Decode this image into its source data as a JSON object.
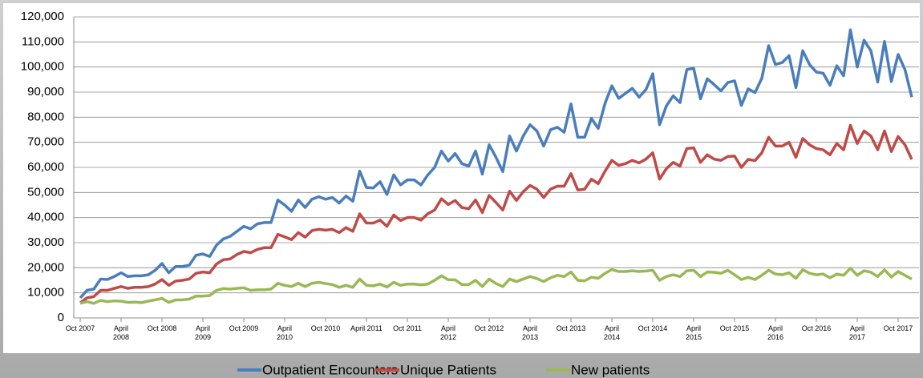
{
  "chart_data": {
    "type": "line",
    "categories": [
      "Oct 2007",
      null,
      null,
      null,
      null,
      null,
      "April 2008",
      null,
      null,
      null,
      null,
      null,
      "Oct 2008",
      null,
      null,
      null,
      null,
      null,
      "April 2009",
      null,
      null,
      null,
      null,
      null,
      "Oct 2009",
      null,
      null,
      null,
      null,
      null,
      "April 2010",
      null,
      null,
      null,
      null,
      null,
      "Oct 2010",
      null,
      null,
      null,
      null,
      null,
      "April 2011",
      null,
      null,
      null,
      null,
      null,
      "Oct 2011",
      null,
      null,
      null,
      null,
      null,
      "April 2012",
      null,
      null,
      null,
      null,
      null,
      "Oct 2012",
      null,
      null,
      null,
      null,
      null,
      "April 2013",
      null,
      null,
      null,
      null,
      null,
      "Oct 2013",
      null,
      null,
      null,
      null,
      null,
      "April 2014",
      null,
      null,
      null,
      null,
      null,
      "Oct 2014",
      null,
      null,
      null,
      null,
      null,
      "April 2015",
      null,
      null,
      null,
      null,
      null,
      "Oct 2015",
      null,
      null,
      null,
      null,
      null,
      "April 2016",
      null,
      null,
      null,
      null,
      null,
      "Oct 2016",
      null,
      null,
      null,
      null,
      null,
      "April 2017",
      null,
      null,
      null,
      null,
      null,
      "Oct 2017",
      null,
      null
    ],
    "series": [
      {
        "name": "Outpatient Encounters",
        "color": "#4a7ebb",
        "values": [
          8000,
          11000,
          11500,
          15500,
          15300,
          16500,
          18000,
          16500,
          16800,
          16800,
          17200,
          19000,
          21700,
          18000,
          20500,
          20500,
          21000,
          25000,
          25500,
          24500,
          29000,
          31500,
          32500,
          34500,
          36500,
          35500,
          37500,
          38000,
          38000,
          47000,
          45000,
          42500,
          47000,
          44000,
          47300,
          48300,
          47300,
          48000,
          45800,
          48600,
          46500,
          58500,
          52000,
          51800,
          54300,
          49200,
          57000,
          53000,
          55000,
          55000,
          53000,
          57000,
          60000,
          66500,
          62500,
          65500,
          61500,
          60500,
          66500,
          57300,
          69000,
          64000,
          58300,
          72500,
          66500,
          72500,
          77000,
          74500,
          68500,
          75000,
          76000,
          74000,
          85300,
          72000,
          72000,
          79500,
          75500,
          85500,
          92500,
          87500,
          89500,
          91500,
          88000,
          91000,
          97300,
          77000,
          84500,
          88500,
          85800,
          99000,
          99500,
          87300,
          95300,
          93000,
          90500,
          93800,
          94500,
          84700,
          91300,
          89800,
          95500,
          108500,
          101000,
          101800,
          104500,
          91800,
          106500,
          101000,
          98000,
          97500,
          92700,
          100500,
          96500,
          114800,
          100000,
          110700,
          106500,
          94000,
          110200,
          94200,
          105000,
          99000,
          88000
        ]
      },
      {
        "name": "Unique Patients",
        "color": "#be4b48",
        "values": [
          6000,
          8000,
          8500,
          11000,
          11000,
          11800,
          12500,
          11800,
          12200,
          12200,
          12500,
          13500,
          15300,
          13000,
          14700,
          15000,
          15500,
          17800,
          18300,
          18000,
          21500,
          23200,
          23500,
          25300,
          26500,
          26000,
          27300,
          28000,
          28000,
          33300,
          32300,
          31200,
          34000,
          32200,
          34800,
          35300,
          35000,
          35300,
          34000,
          36000,
          34500,
          41500,
          37800,
          37800,
          39000,
          36500,
          41000,
          38800,
          40000,
          40000,
          39000,
          41500,
          43000,
          47500,
          45200,
          46800,
          44000,
          43500,
          47000,
          42000,
          48800,
          46000,
          43000,
          50500,
          46800,
          50300,
          52800,
          51300,
          48000,
          51300,
          52500,
          52500,
          57500,
          51000,
          51300,
          55300,
          53500,
          58500,
          62800,
          60800,
          61500,
          62800,
          61800,
          63300,
          65800,
          55300,
          59500,
          62000,
          60500,
          67500,
          67800,
          62000,
          65000,
          63300,
          62800,
          64300,
          64500,
          60000,
          63200,
          62700,
          65800,
          72000,
          68500,
          68500,
          70000,
          64000,
          71500,
          69000,
          67500,
          67000,
          65000,
          69500,
          67000,
          76800,
          69500,
          74500,
          72500,
          67000,
          74500,
          66300,
          72300,
          69000,
          63200
        ]
      },
      {
        "name": "New patients",
        "color": "#98b954",
        "values": [
          5800,
          6500,
          5800,
          7000,
          6500,
          6800,
          6700,
          6200,
          6300,
          6100,
          6700,
          7200,
          7800,
          6200,
          7200,
          7200,
          7500,
          8700,
          8700,
          8900,
          11000,
          11700,
          11500,
          11800,
          12000,
          11000,
          11200,
          11200,
          11500,
          13800,
          13000,
          12500,
          13800,
          12500,
          13800,
          14200,
          13700,
          13300,
          12200,
          13000,
          12200,
          15500,
          13000,
          12800,
          13500,
          12300,
          14200,
          13000,
          13500,
          13500,
          13200,
          13500,
          15000,
          16800,
          15200,
          15200,
          13300,
          13300,
          15000,
          12500,
          15500,
          13700,
          12500,
          15500,
          14500,
          15500,
          16500,
          15700,
          14500,
          16000,
          17000,
          16500,
          18300,
          15000,
          14800,
          16200,
          15800,
          17800,
          19300,
          18500,
          18500,
          18800,
          18500,
          18700,
          19000,
          15000,
          16500,
          17200,
          16500,
          18800,
          19000,
          16500,
          18300,
          18200,
          17800,
          19000,
          17200,
          15300,
          16200,
          15300,
          17000,
          19000,
          17500,
          17200,
          18000,
          15800,
          19200,
          17800,
          17200,
          17500,
          16000,
          17500,
          17000,
          19800,
          17000,
          18800,
          18200,
          16500,
          19200,
          16300,
          18500,
          17000,
          15500
        ]
      }
    ],
    "ylim": [
      0,
      120000
    ],
    "yticks": [
      0,
      {
        "value": 10000,
        "label": "10,000"
      },
      {
        "value": 20000,
        "label": "20,000"
      },
      {
        "value": 30000,
        "label": "30,000"
      },
      {
        "value": 40000,
        "label": "40,000"
      },
      {
        "value": 50000,
        "label": "50,000"
      },
      {
        "value": 60000,
        "label": "60,000"
      },
      {
        "value": 70000,
        "label": "70,000"
      },
      {
        "value": 80000,
        "label": "80,000"
      },
      {
        "value": 90000,
        "label": "90,000"
      },
      {
        "value": 100000,
        "label": "100,000"
      },
      {
        "value": 110000,
        "label": "110,000"
      },
      {
        "value": 120000,
        "label": "120,000"
      }
    ],
    "grid": true,
    "legend": "bottom"
  }
}
